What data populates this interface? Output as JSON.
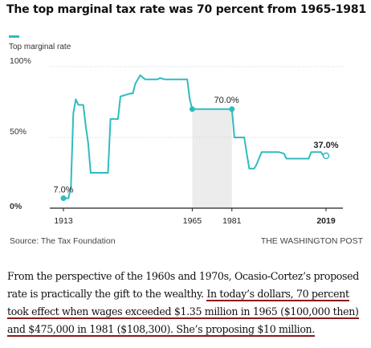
{
  "headline": "The top marginal tax rate was 70 percent from 1965-1981",
  "legend": {
    "label": "Top marginal rate",
    "color": "#2fbcc0"
  },
  "colors": {
    "line": "#2fbcc0",
    "highlight": "#ececec",
    "grid": "#cfcfcf",
    "baseline": "#222222",
    "underline": "#8b1a1a"
  },
  "chart_data": {
    "type": "line",
    "title": "The top marginal tax rate was 70 percent from 1965-1981",
    "xlabel": "",
    "ylabel": "",
    "xlim": [
      1913,
      2019
    ],
    "ylim": [
      0,
      100
    ],
    "grid": true,
    "y_ticks": [
      "0%",
      "50%",
      "100%"
    ],
    "x_ticks": [
      "1913",
      "1965",
      "1981",
      "2019"
    ],
    "highlight_range": [
      1965,
      1981
    ],
    "series": [
      {
        "name": "Top marginal rate",
        "points": [
          [
            1913,
            7
          ],
          [
            1915,
            7
          ],
          [
            1916,
            15
          ],
          [
            1917,
            67
          ],
          [
            1918,
            77
          ],
          [
            1919,
            73
          ],
          [
            1921,
            73
          ],
          [
            1922,
            58
          ],
          [
            1923,
            46
          ],
          [
            1924,
            25
          ],
          [
            1931,
            25
          ],
          [
            1932,
            63
          ],
          [
            1935,
            63
          ],
          [
            1936,
            79
          ],
          [
            1940,
            81.1
          ],
          [
            1941,
            81
          ],
          [
            1942,
            88
          ],
          [
            1944,
            94
          ],
          [
            1946,
            91
          ],
          [
            1950,
            91
          ],
          [
            1951,
            91
          ],
          [
            1952,
            92
          ],
          [
            1954,
            91
          ],
          [
            1963,
            91
          ],
          [
            1964,
            77
          ],
          [
            1965,
            70
          ],
          [
            1981,
            70
          ],
          [
            1982,
            50
          ],
          [
            1986,
            50
          ],
          [
            1987,
            38.5
          ],
          [
            1988,
            28
          ],
          [
            1990,
            28
          ],
          [
            1991,
            31
          ],
          [
            1993,
            39.6
          ],
          [
            2000,
            39.6
          ],
          [
            2001,
            39.1
          ],
          [
            2002,
            38.6
          ],
          [
            2003,
            35
          ],
          [
            2012,
            35
          ],
          [
            2013,
            39.6
          ],
          [
            2017,
            39.6
          ],
          [
            2018,
            37
          ],
          [
            2019,
            37
          ]
        ]
      }
    ],
    "annotations": [
      {
        "year": 1913,
        "value": 7,
        "label": "7.0%"
      },
      {
        "year": 1965,
        "value": 70,
        "label": "70.0%"
      },
      {
        "year": 1981,
        "value": 70,
        "label": "70.0%"
      },
      {
        "year": 2019,
        "value": 37,
        "label": "37.0%"
      }
    ]
  },
  "source": "Source: The Tax Foundation",
  "credit": "THE WASHINGTON POST",
  "paragraph": {
    "line1": "From the perspective of the 1960s and 1970s, Ocasio-Cortez’s proposed",
    "line2_plain": "rate is practically the gift to the wealthy. ",
    "line2_underlined": "In today’s dollars, 70 percent",
    "line3_underlined": "took effect when wages exceeded $1.35 million in 1965 ($100,000 then)",
    "line4_underlined": "and $475,000 in 1981 ($108,300). She’s proposing $10 million."
  }
}
